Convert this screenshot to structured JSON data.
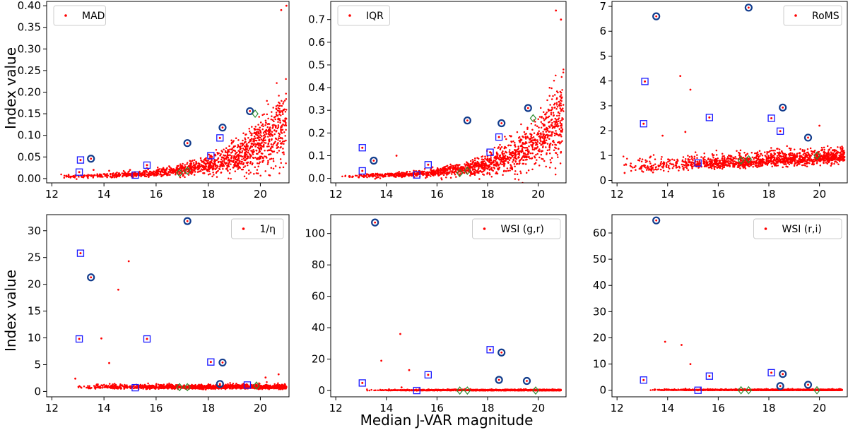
{
  "figure": {
    "ylabel": "Index value",
    "xlabel": "Median J-VAR magnitude",
    "colors": {
      "points": "#ff0000",
      "square": "#1a1aff",
      "circle": "#123c8c",
      "diamond": "#2e8b2e"
    }
  },
  "chart_data": [
    {
      "type": "scatter",
      "legend": "MAD",
      "legend_position": "top-left",
      "xlim": [
        11.8,
        21.1
      ],
      "ylim": [
        -0.01,
        0.41
      ],
      "xticks": [
        12,
        14,
        16,
        18,
        20
      ],
      "yticks": [
        0.0,
        0.05,
        0.1,
        0.15,
        0.2,
        0.25,
        0.3,
        0.35,
        0.4
      ],
      "ytick_labels": [
        "0.00",
        "0.05",
        "0.10",
        "0.15",
        "0.20",
        "0.25",
        "0.30",
        "0.35",
        "0.40"
      ],
      "trend": {
        "model": "exp",
        "a": 0.0035,
        "b": 0.0012,
        "c": 0.52,
        "x0": 12.2,
        "x1": 21.0,
        "spread": 0.35
      },
      "outliers": [
        [
          13.6,
          0.02
        ],
        [
          14.2,
          0.018
        ],
        [
          15.0,
          0.02
        ],
        [
          20.8,
          0.39
        ],
        [
          21.0,
          0.4
        ],
        [
          20.4,
          0.07
        ]
      ],
      "squares": [
        [
          13.1,
          0.043
        ],
        [
          13.05,
          0.015
        ],
        [
          15.2,
          0.008
        ],
        [
          15.65,
          0.031
        ],
        [
          18.1,
          0.053
        ],
        [
          18.45,
          0.094
        ]
      ],
      "circles": [
        [
          13.5,
          0.046
        ],
        [
          17.2,
          0.082
        ],
        [
          18.55,
          0.118
        ],
        [
          19.6,
          0.156
        ]
      ],
      "diamonds": [
        [
          16.9,
          0.013
        ],
        [
          17.2,
          0.018
        ],
        [
          19.8,
          0.15
        ]
      ]
    },
    {
      "type": "scatter",
      "legend": "IQR",
      "legend_position": "top-left",
      "xlim": [
        11.8,
        21.1
      ],
      "ylim": [
        -0.02,
        0.78
      ],
      "xticks": [
        12,
        14,
        16,
        18,
        20
      ],
      "yticks": [
        0.0,
        0.1,
        0.2,
        0.3,
        0.4,
        0.5,
        0.6,
        0.7
      ],
      "ytick_labels": [
        "0.0",
        "0.1",
        "0.2",
        "0.3",
        "0.4",
        "0.5",
        "0.6",
        "0.7"
      ],
      "trend": {
        "model": "exp",
        "a": 0.007,
        "b": 0.0025,
        "c": 0.52,
        "x0": 12.2,
        "x1": 21.0,
        "spread": 0.35
      },
      "outliers": [
        [
          14.4,
          0.1
        ],
        [
          20.7,
          0.74
        ],
        [
          20.9,
          0.7
        ],
        [
          20.5,
          0.07
        ],
        [
          20.8,
          0.13
        ]
      ],
      "squares": [
        [
          13.05,
          0.135
        ],
        [
          13.05,
          0.033
        ],
        [
          15.2,
          0.015
        ],
        [
          15.65,
          0.06
        ],
        [
          18.1,
          0.115
        ],
        [
          18.45,
          0.182
        ]
      ],
      "circles": [
        [
          13.5,
          0.078
        ],
        [
          17.2,
          0.255
        ],
        [
          18.55,
          0.243
        ],
        [
          19.6,
          0.31
        ]
      ],
      "diamonds": [
        [
          16.9,
          0.023
        ],
        [
          17.2,
          0.033
        ],
        [
          19.8,
          0.265
        ]
      ]
    },
    {
      "type": "scatter",
      "legend": "RoMS",
      "legend_position": "top-right",
      "xlim": [
        11.8,
        21.1
      ],
      "ylim": [
        -0.1,
        7.2
      ],
      "xticks": [
        12,
        14,
        16,
        18,
        20
      ],
      "yticks": [
        0,
        1,
        2,
        3,
        4,
        5,
        6,
        7
      ],
      "ytick_labels": [
        "0",
        "1",
        "2",
        "3",
        "4",
        "5",
        "6",
        "7"
      ],
      "trend": {
        "model": "linear",
        "a": 0.5,
        "b": 0.05,
        "x0": 12.2,
        "x1": 21.0,
        "spread": 0.18
      },
      "outliers": [
        [
          14.5,
          4.2
        ],
        [
          14.9,
          3.65
        ],
        [
          14.7,
          1.95
        ],
        [
          13.8,
          1.8
        ],
        [
          20.0,
          2.2
        ],
        [
          12.3,
          0.3
        ]
      ],
      "squares": [
        [
          13.1,
          3.98
        ],
        [
          13.05,
          2.28
        ],
        [
          15.2,
          0.7
        ],
        [
          15.65,
          2.53
        ],
        [
          18.1,
          2.5
        ],
        [
          18.45,
          1.98
        ]
      ],
      "circles": [
        [
          13.55,
          6.6
        ],
        [
          17.2,
          6.95
        ],
        [
          18.55,
          2.93
        ],
        [
          19.55,
          1.72
        ]
      ],
      "diamonds": [
        [
          16.9,
          0.8
        ],
        [
          17.2,
          0.85
        ],
        [
          19.9,
          1.0
        ]
      ]
    },
    {
      "type": "scatter",
      "legend": "1/η",
      "legend_position": "top-right",
      "xlim": [
        11.8,
        21.1
      ],
      "ylim": [
        -1.0,
        33.0
      ],
      "xticks": [
        12,
        14,
        16,
        18,
        20
      ],
      "yticks": [
        0,
        5,
        10,
        15,
        20,
        25,
        30
      ],
      "ytick_labels": [
        "0",
        "5",
        "10",
        "15",
        "20",
        "25",
        "30"
      ],
      "trend": {
        "model": "linear",
        "a": 0.8,
        "b": 0.0,
        "x0": 12.8,
        "x1": 21.0,
        "spread": 0.25
      },
      "outliers": [
        [
          14.95,
          24.3
        ],
        [
          14.55,
          19.0
        ],
        [
          13.9,
          9.9
        ],
        [
          14.2,
          5.3
        ],
        [
          12.9,
          2.4
        ],
        [
          20.7,
          3.2
        ],
        [
          20.2,
          2.6
        ]
      ],
      "squares": [
        [
          13.1,
          25.8
        ],
        [
          13.05,
          9.8
        ],
        [
          15.2,
          0.7
        ],
        [
          15.65,
          9.8
        ],
        [
          18.1,
          5.5
        ],
        [
          19.5,
          1.2
        ]
      ],
      "circles": [
        [
          13.5,
          21.3
        ],
        [
          17.2,
          31.8
        ],
        [
          18.55,
          5.4
        ],
        [
          18.45,
          1.4
        ]
      ],
      "diamonds": [
        [
          16.9,
          0.8
        ],
        [
          17.2,
          0.8
        ],
        [
          19.85,
          1.1
        ]
      ]
    },
    {
      "type": "scatter",
      "legend": "WSI (g,r)",
      "legend_position": "top-right",
      "xlim": [
        11.8,
        21.1
      ],
      "ylim": [
        -4.0,
        112.0
      ],
      "xticks": [
        12,
        14,
        16,
        18,
        20
      ],
      "yticks": [
        0,
        20,
        40,
        60,
        80,
        100
      ],
      "ytick_labels": [
        "0",
        "20",
        "40",
        "60",
        "80",
        "100"
      ],
      "trend": {
        "model": "linear",
        "a": 0.0,
        "b": 0.0,
        "x0": 13.2,
        "x1": 20.9,
        "spread": 0.6
      },
      "outliers": [
        [
          14.55,
          36.0
        ],
        [
          14.9,
          13.0
        ],
        [
          13.8,
          19.0
        ],
        [
          14.6,
          2.0
        ],
        [
          15.3,
          0.8
        ]
      ],
      "squares": [
        [
          13.05,
          4.8
        ],
        [
          15.2,
          0.0
        ],
        [
          15.65,
          10.0
        ],
        [
          18.1,
          26.0
        ]
      ],
      "circles": [
        [
          13.55,
          107.0
        ],
        [
          18.55,
          24.2
        ],
        [
          18.45,
          6.8
        ],
        [
          19.55,
          6.1
        ]
      ],
      "diamonds": [
        [
          16.9,
          0.0
        ],
        [
          17.2,
          0.0
        ],
        [
          19.9,
          0.0
        ]
      ]
    },
    {
      "type": "scatter",
      "legend": "WSI (r,i)",
      "legend_position": "top-right",
      "xlim": [
        11.8,
        21.1
      ],
      "ylim": [
        -2.5,
        67.0
      ],
      "xticks": [
        12,
        14,
        16,
        18,
        20
      ],
      "yticks": [
        0,
        10,
        20,
        30,
        40,
        50,
        60
      ],
      "ytick_labels": [
        "0",
        "10",
        "20",
        "30",
        "40",
        "50",
        "60"
      ],
      "trend": {
        "model": "linear",
        "a": 0.0,
        "b": 0.0,
        "x0": 13.2,
        "x1": 20.9,
        "spread": 0.35
      },
      "outliers": [
        [
          13.9,
          18.5
        ],
        [
          14.55,
          17.3
        ],
        [
          14.9,
          10.0
        ],
        [
          15.3,
          0.6
        ]
      ],
      "squares": [
        [
          13.05,
          3.9
        ],
        [
          15.2,
          0.0
        ],
        [
          15.65,
          5.4
        ],
        [
          18.1,
          6.7
        ]
      ],
      "circles": [
        [
          13.55,
          64.8
        ],
        [
          18.55,
          6.2
        ],
        [
          18.45,
          1.6
        ],
        [
          19.55,
          2.1
        ]
      ],
      "diamonds": [
        [
          16.9,
          0.0
        ],
        [
          17.2,
          0.0
        ],
        [
          19.9,
          0.0
        ]
      ]
    }
  ]
}
